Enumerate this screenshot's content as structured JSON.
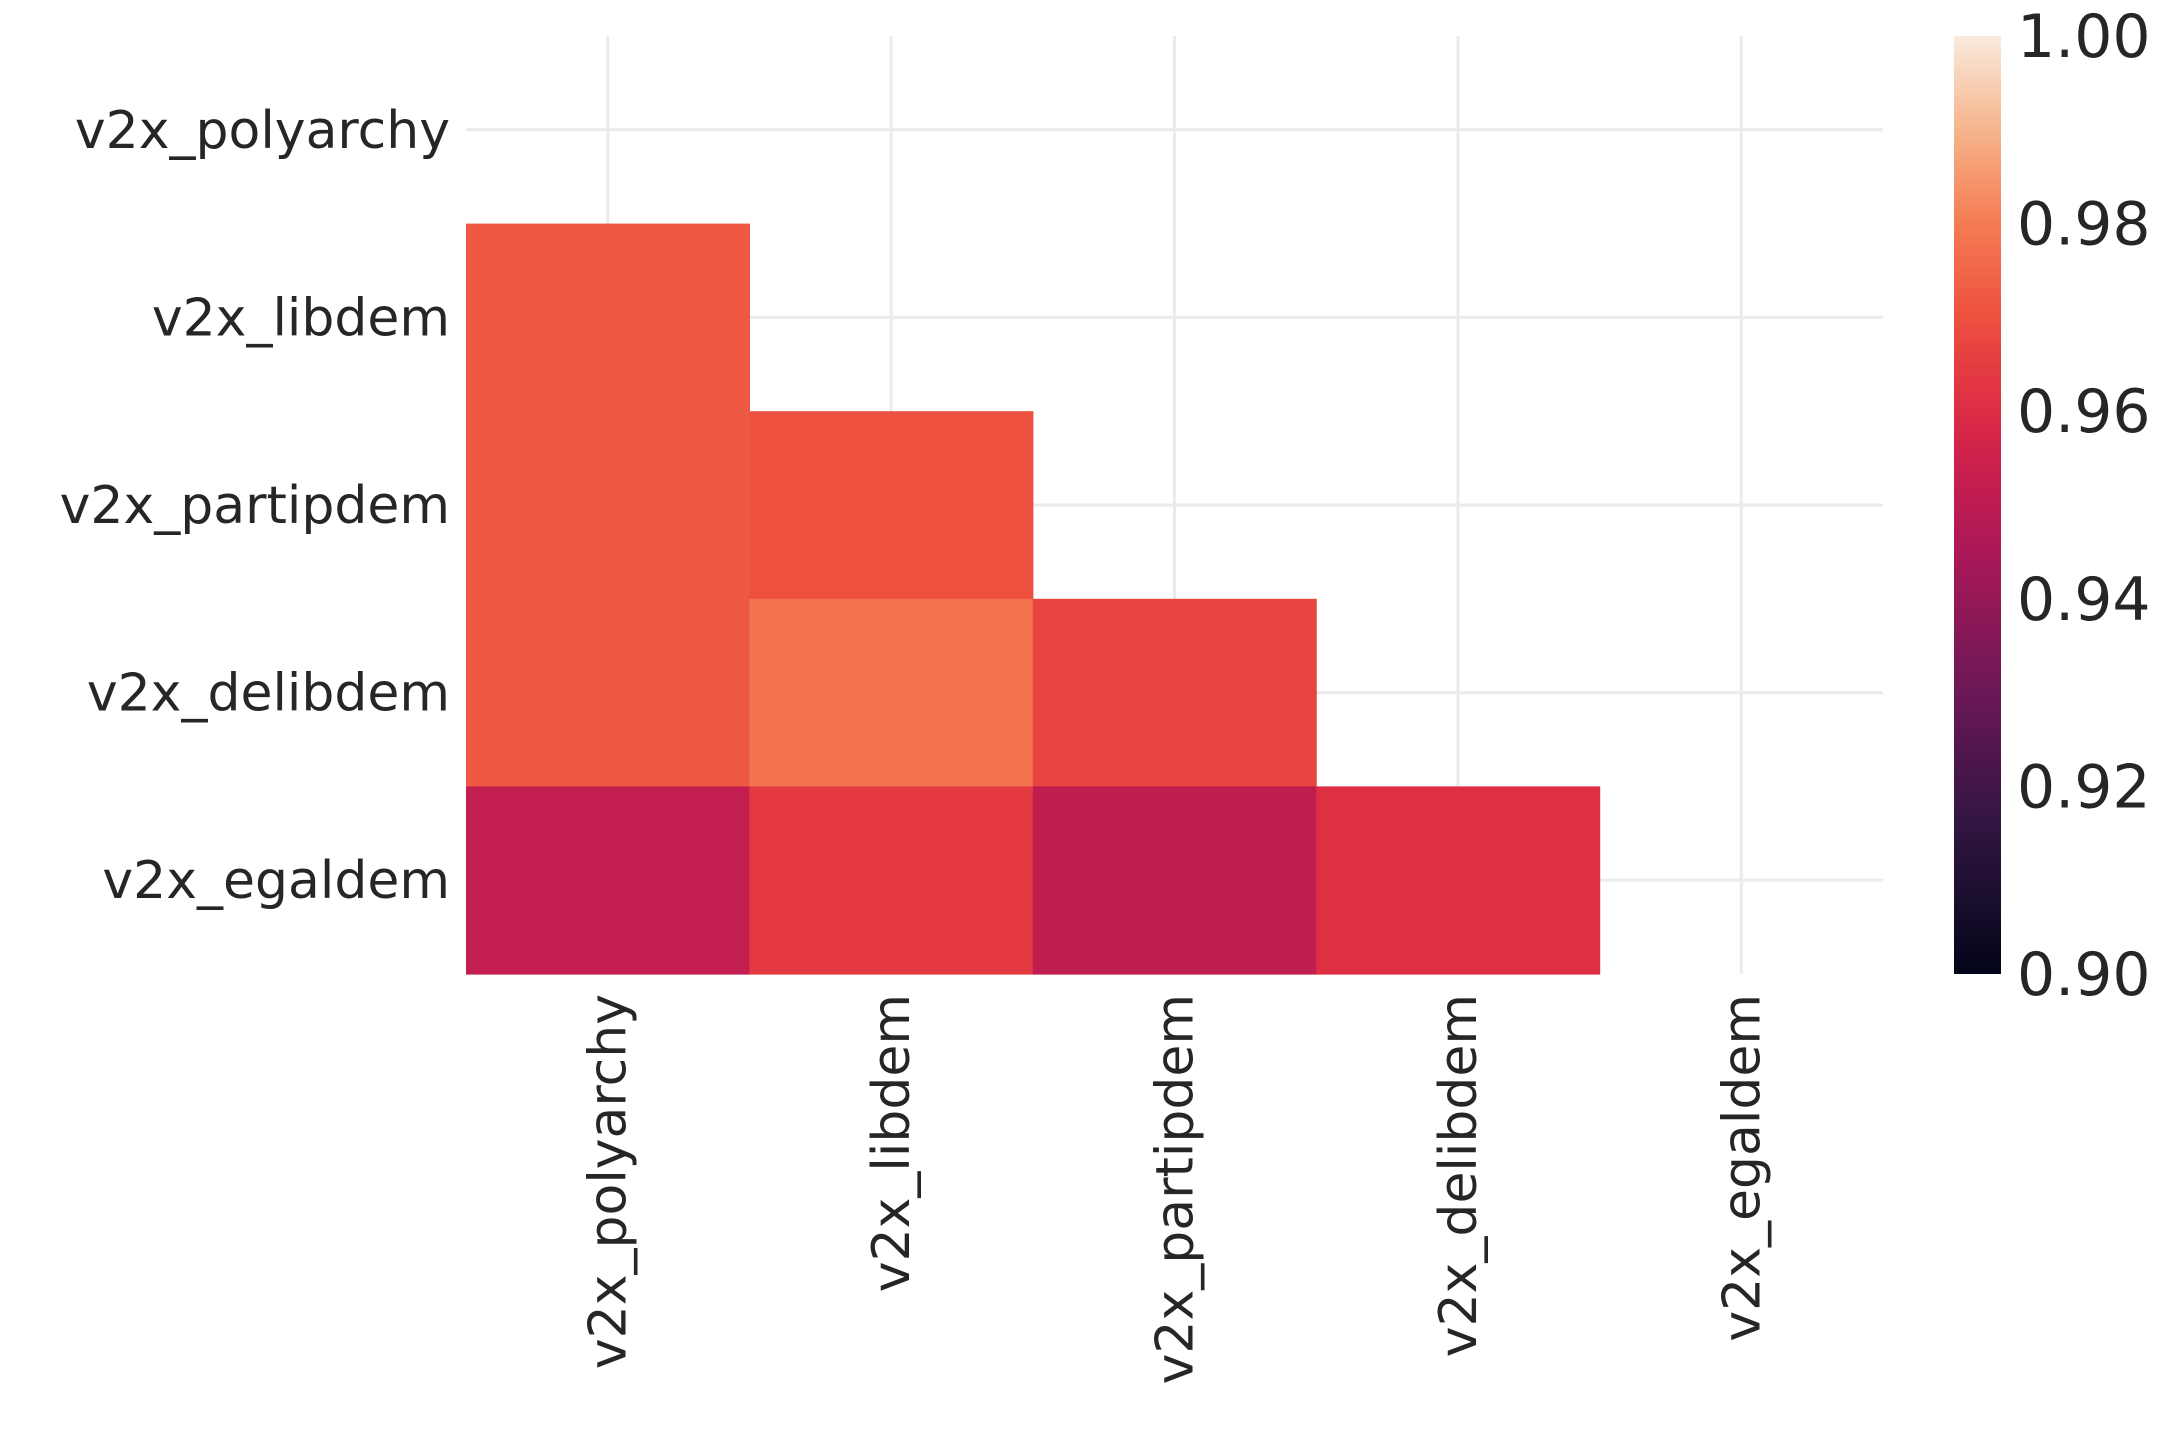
{
  "chart_data": {
    "type": "heatmap",
    "title": "",
    "xlabel": "",
    "ylabel": "",
    "x_categories": [
      "v2x_polyarchy",
      "v2x_libdem",
      "v2x_partipdem",
      "v2x_delibdem",
      "v2x_egaldem"
    ],
    "y_categories": [
      "v2x_polyarchy",
      "v2x_libdem",
      "v2x_partipdem",
      "v2x_delibdem",
      "v2x_egaldem"
    ],
    "mask": "upper-triangle-including-diagonal",
    "values": [
      [
        null,
        null,
        null,
        null,
        null
      ],
      [
        0.972,
        null,
        null,
        null,
        null
      ],
      [
        0.972,
        0.97,
        null,
        null,
        null
      ],
      [
        0.972,
        0.978,
        0.967,
        null,
        null
      ],
      [
        0.952,
        0.964,
        0.951,
        0.961,
        null
      ]
    ],
    "colorbar": {
      "range": [
        0.9,
        1.0
      ],
      "ticks": [
        "0.90",
        "0.92",
        "0.94",
        "0.96",
        "0.98",
        "1.00"
      ],
      "colormap": "rocket"
    },
    "grid": true,
    "legend": "colorbar-right"
  }
}
